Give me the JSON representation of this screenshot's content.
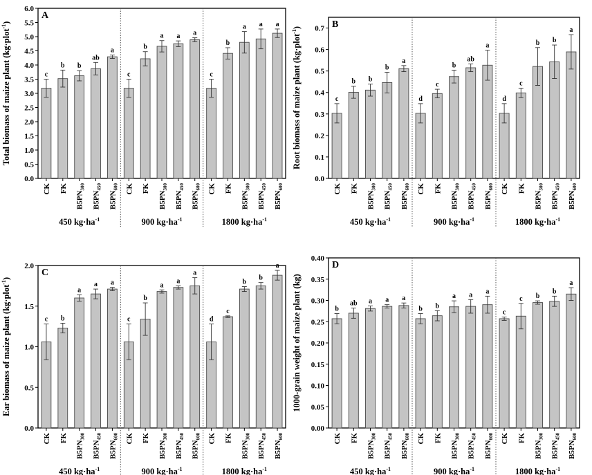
{
  "chart_data": [
    {
      "type": "bar",
      "panel_label": "A",
      "ylabel": "Total biomass of maize plant (kg·plot-1)",
      "ylim": [
        0,
        6.0
      ],
      "yticks": [
        0,
        0.5,
        1.0,
        1.5,
        2.0,
        2.5,
        3.0,
        3.5,
        4.0,
        4.5,
        5.0,
        5.5,
        6.0
      ],
      "ytick_decimals": 1,
      "groups": [
        "450 kg·ha-1",
        "900 kg·ha-1",
        "1800 kg·ha-1"
      ],
      "categories": [
        "CK",
        "FK",
        "B5PN300",
        "B5PN450",
        "B5PN600"
      ],
      "values": [
        [
          3.18,
          3.52,
          3.62,
          3.87,
          4.29
        ],
        [
          3.18,
          4.22,
          4.66,
          4.75,
          4.89
        ],
        [
          3.18,
          4.41,
          4.8,
          4.92,
          5.12
        ]
      ],
      "errors": [
        [
          0.32,
          0.3,
          0.18,
          0.22,
          0.06
        ],
        [
          0.32,
          0.25,
          0.2,
          0.1,
          0.07
        ],
        [
          0.32,
          0.2,
          0.38,
          0.35,
          0.15
        ]
      ],
      "letters": [
        [
          "c",
          "b",
          "b",
          "ab",
          "a"
        ],
        [
          "c",
          "b",
          "a",
          "a",
          "a"
        ],
        [
          "c",
          "b",
          "a",
          "a",
          "a"
        ]
      ]
    },
    {
      "type": "bar",
      "panel_label": "B",
      "ylabel": "Root biomass of maize plant (kg·plot-1)",
      "ylim": [
        0,
        0.75
      ],
      "yticks": [
        0,
        0.1,
        0.2,
        0.3,
        0.4,
        0.5,
        0.6,
        0.7
      ],
      "ytick_decimals": 1,
      "groups": [
        "450 kg·ha-1",
        "900 kg·ha-1",
        "1800 kg·ha-1"
      ],
      "categories": [
        "CK",
        "FK",
        "B5PN300",
        "B5PN450",
        "B5PN600"
      ],
      "values": [
        [
          0.303,
          0.401,
          0.411,
          0.446,
          0.511
        ],
        [
          0.303,
          0.395,
          0.474,
          0.515,
          0.527
        ],
        [
          0.303,
          0.398,
          0.521,
          0.543,
          0.589
        ]
      ],
      "errors": [
        [
          0.045,
          0.028,
          0.028,
          0.048,
          0.014
        ],
        [
          0.045,
          0.02,
          0.03,
          0.018,
          0.07
        ],
        [
          0.045,
          0.022,
          0.088,
          0.078,
          0.08
        ]
      ],
      "letters": [
        [
          "c",
          "b",
          "b",
          "b",
          "a"
        ],
        [
          "d",
          "c",
          "b",
          "ab",
          "a"
        ],
        [
          "d",
          "c",
          "b",
          "b",
          "a"
        ]
      ]
    },
    {
      "type": "bar",
      "panel_label": "C",
      "ylabel": "Ear biomass of maize plant (kg·plot-1)",
      "ylim": [
        0,
        2.0
      ],
      "yticks": [
        0,
        0.5,
        1.0,
        1.5,
        2.0
      ],
      "ytick_decimals": 1,
      "groups": [
        "450 kg·ha-1",
        "900 kg·ha-1",
        "1800 kg·ha-1"
      ],
      "categories": [
        "CK",
        "FK",
        "B5PN300",
        "B5PN450",
        "B5PN600"
      ],
      "values": [
        [
          1.06,
          1.23,
          1.6,
          1.65,
          1.71
        ],
        [
          1.06,
          1.34,
          1.68,
          1.73,
          1.75
        ],
        [
          1.06,
          1.37,
          1.71,
          1.75,
          1.88
        ]
      ],
      "errors": [
        [
          0.22,
          0.06,
          0.04,
          0.06,
          0.02
        ],
        [
          0.22,
          0.2,
          0.02,
          0.02,
          0.1
        ],
        [
          0.22,
          0.01,
          0.03,
          0.04,
          0.06
        ]
      ],
      "letters": [
        [
          "c",
          "b",
          "a",
          "a",
          "a"
        ],
        [
          "c",
          "b",
          "a",
          "a",
          "a"
        ],
        [
          "d",
          "c",
          "b",
          "b",
          "a"
        ]
      ]
    },
    {
      "type": "bar",
      "panel_label": "D",
      "ylabel": "1000-grain weight of maize plant (kg)",
      "ylim": [
        0,
        0.4
      ],
      "yticks": [
        0,
        0.05,
        0.1,
        0.15,
        0.2,
        0.25,
        0.3,
        0.35,
        0.4
      ],
      "ytick_decimals": 2,
      "groups": [
        "450 kg·ha-1",
        "900 kg·ha-1",
        "1800 kg·ha-1"
      ],
      "categories": [
        "CK",
        "FK",
        "B5PN300",
        "B5PN450",
        "B5PN600"
      ],
      "values": [
        [
          0.257,
          0.27,
          0.281,
          0.286,
          0.288
        ],
        [
          0.257,
          0.264,
          0.285,
          0.286,
          0.29
        ],
        [
          0.257,
          0.263,
          0.295,
          0.298,
          0.315
        ]
      ],
      "errors": [
        [
          0.012,
          0.012,
          0.006,
          0.004,
          0.006
        ],
        [
          0.012,
          0.012,
          0.014,
          0.016,
          0.02
        ],
        [
          0.004,
          0.03,
          0.004,
          0.012,
          0.015
        ]
      ],
      "letters": [
        [
          "b",
          "ab",
          "a",
          "a",
          "a"
        ],
        [
          "b",
          "b",
          "a",
          "a",
          "a"
        ],
        [
          "c",
          "c",
          "b",
          "b",
          "a"
        ]
      ]
    }
  ]
}
